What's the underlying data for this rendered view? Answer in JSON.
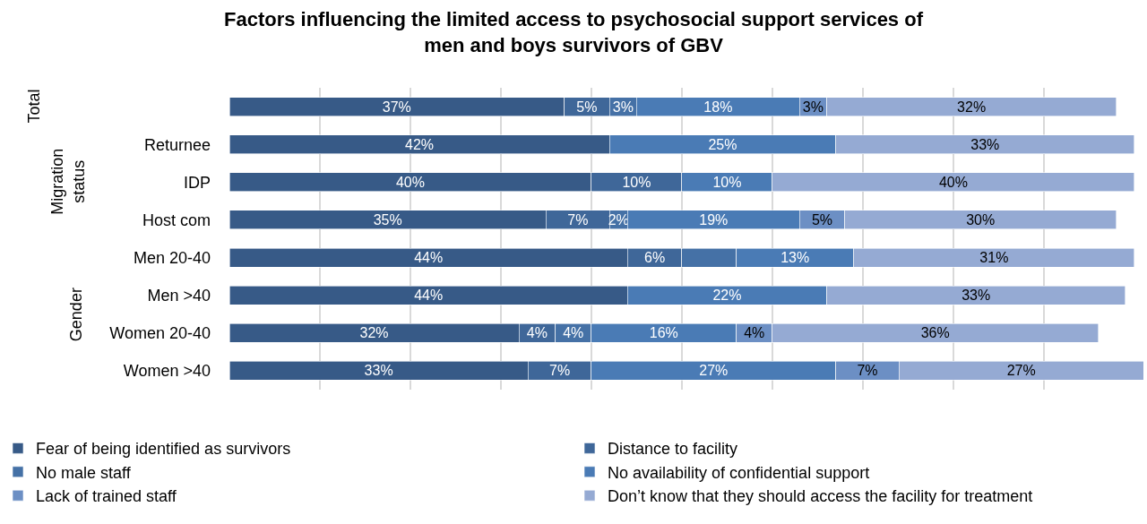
{
  "chart_data": {
    "type": "bar",
    "orientation": "horizontal",
    "stacked": true,
    "title": "Factors influencing the limited access to psychosocial support services of men and boys survivors of GBV",
    "categories": [
      null,
      "Returnee",
      "IDP",
      "Host com",
      "Men 20-40",
      "Men >40",
      "Women 20-40",
      "Women >40"
    ],
    "series": [
      {
        "name": "Fear of being identified as survivors",
        "color": "#375a87",
        "values": [
          37,
          42,
          40,
          35,
          44,
          44,
          32,
          33
        ],
        "value_labels": [
          "37%",
          "42%",
          "40%",
          "35%",
          "44%",
          "44%",
          "32%",
          "33%"
        ]
      },
      {
        "name": "Distance to facility",
        "color": "#3f6799",
        "values": [
          5,
          null,
          10,
          7,
          6,
          null,
          4,
          7
        ],
        "value_labels": [
          "5%",
          null,
          "10%",
          "7%",
          "6%",
          null,
          "4%",
          "7%"
        ]
      },
      {
        "name": "No male staff",
        "color": "#4571a6",
        "values": [
          3,
          null,
          null,
          2,
          6,
          null,
          4,
          null
        ],
        "value_labels": [
          "3%",
          null,
          null,
          "2%",
          null,
          null,
          "4%",
          null
        ]
      },
      {
        "name": "No availability of confidential support",
        "color": "#4a7bb5",
        "values": [
          18,
          25,
          10,
          19,
          13,
          22,
          16,
          27
        ],
        "value_labels": [
          "18%",
          "25%",
          "10%",
          "19%",
          "13%",
          "22%",
          "16%",
          "27%"
        ]
      },
      {
        "name": "Lack of trained staff",
        "color": "#6c8fc4",
        "values": [
          3,
          null,
          null,
          5,
          null,
          null,
          4,
          7
        ],
        "value_labels": [
          "3%",
          null,
          null,
          "5%",
          null,
          null,
          "4%",
          "7%"
        ]
      },
      {
        "name": "Don’t know that they should access the facility for treatment",
        "color": "#95aad3",
        "values": [
          32,
          33,
          40,
          30,
          31,
          33,
          36,
          27
        ],
        "value_labels": [
          "32%",
          "33%",
          "40%",
          "30%",
          "31%",
          "33%",
          "36%",
          "27%"
        ]
      }
    ],
    "xlim": [
      0,
      101
    ],
    "xticks": [
      {
        "value": 10,
        "label": null
      },
      {
        "value": 20,
        "label": null
      },
      {
        "value": 30,
        "label": null
      },
      {
        "value": 40,
        "label": null
      },
      {
        "value": 50,
        "label": null
      },
      {
        "value": 60,
        "label": null
      },
      {
        "value": 70,
        "label": null
      },
      {
        "value": 80,
        "label": null
      },
      {
        "value": 90,
        "label": null
      }
    ],
    "tick_labels": "y",
    "annotations": [
      "Total",
      "Migration status",
      "Gender"
    ],
    "grid": "x",
    "legend": "bottom"
  }
}
